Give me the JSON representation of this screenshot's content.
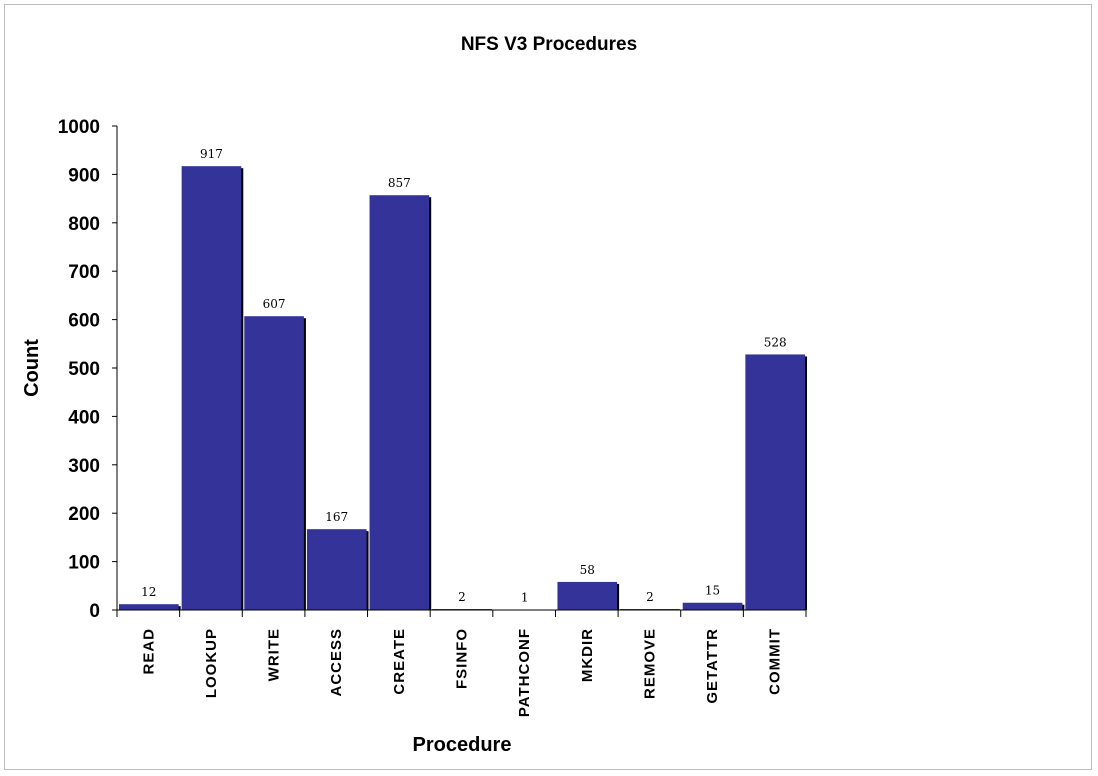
{
  "chart_data": {
    "type": "bar",
    "title": "NFS V3 Procedures",
    "xlabel": "Procedure",
    "ylabel": "Count",
    "ylim": [
      0,
      1000
    ],
    "yticks": [
      0,
      100,
      200,
      300,
      400,
      500,
      600,
      700,
      800,
      900,
      1000
    ],
    "categories": [
      "READ",
      "LOOKUP",
      "WRITE",
      "ACCESS",
      "CREATE",
      "FSINFO",
      "PATHCONF",
      "MKDIR",
      "REMOVE",
      "GETATTR",
      "COMMIT"
    ],
    "values": [
      12,
      917,
      607,
      167,
      857,
      2,
      1,
      58,
      2,
      15,
      528
    ],
    "data_labels": [
      "12",
      "917",
      "607",
      "167",
      "857",
      "2",
      "1",
      "58",
      "2",
      "15",
      "528"
    ],
    "bar_color": "#333399",
    "grid": false,
    "legend": "none"
  }
}
